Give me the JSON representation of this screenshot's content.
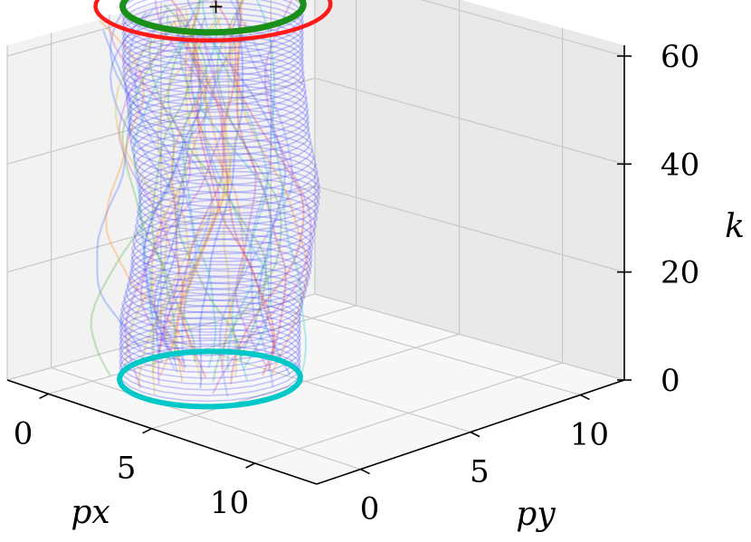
{
  "chart_data": {
    "type": "line",
    "projection": "3d",
    "axes": {
      "x": {
        "label": "p_x",
        "ticks": [
          "0",
          "5",
          "10"
        ],
        "range": [
          -2,
          13
        ]
      },
      "y": {
        "label": "p_y",
        "ticks": [
          "0",
          "5",
          "10"
        ],
        "range": [
          -2,
          12
        ]
      },
      "z": {
        "label": "k",
        "ticks": [
          "0",
          "20",
          "40",
          "60"
        ],
        "range": [
          0,
          62
        ]
      }
    },
    "grid": true,
    "tube": {
      "description_color": "#3a3aff",
      "radius": 3,
      "k_start": 0,
      "k_end": 60,
      "center_path": [
        {
          "k": 0,
          "px": 2.5,
          "py": 3.0
        },
        {
          "k": 10,
          "px": 2.3,
          "py": 3.2
        },
        {
          "k": 20,
          "px": 2.0,
          "py": 4.0
        },
        {
          "k": 30,
          "px": 1.0,
          "py": 5.3
        },
        {
          "k": 40,
          "px": -0.5,
          "py": 6.2
        },
        {
          "k": 50,
          "px": -1.3,
          "py": 6.7
        },
        {
          "k": 60,
          "px": -1.4,
          "py": 6.8
        }
      ]
    },
    "start_ellipse": {
      "k": 0,
      "color": "#00c8c8"
    },
    "end_ellipses": [
      {
        "k": 60,
        "color": "#ff1a1a",
        "scale": 1.3
      },
      {
        "k": 60,
        "color": "#1a8f1a",
        "scale": 1.0
      }
    ],
    "series_colors": [
      "#5a7cff",
      "#ff9933",
      "#66bb55",
      "#cc66cc",
      "#e0c040",
      "#44cccc",
      "#ee5555",
      "#8899ff"
    ]
  }
}
